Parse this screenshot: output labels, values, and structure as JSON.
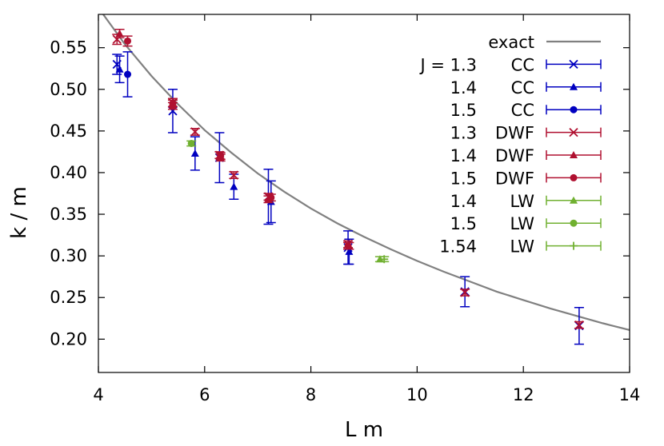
{
  "chart_data": {
    "type": "scatter",
    "title": "",
    "xlabel": "L m",
    "ylabel": "k / m",
    "xlim": [
      4,
      14
    ],
    "ylim": [
      0.16,
      0.59
    ],
    "x_ticks": [
      4,
      6,
      8,
      10,
      12,
      14
    ],
    "y_ticks": [
      0.2,
      0.25,
      0.3,
      0.35,
      0.4,
      0.45,
      0.5,
      0.55
    ],
    "x_tick_labels": [
      "4",
      "6",
      "8",
      "10",
      "12",
      "14"
    ],
    "y_tick_labels": [
      "0.20",
      "0.25",
      "0.30",
      "0.35",
      "0.40",
      "0.45",
      "0.50",
      "0.55"
    ],
    "grid": false,
    "legend_position": "top-right",
    "curve": {
      "name": "exact",
      "color": "#808080",
      "x": [
        4.0,
        4.5,
        5.0,
        5.5,
        6.0,
        6.5,
        7.0,
        7.5,
        8.0,
        8.5,
        9.0,
        9.5,
        10.0,
        10.5,
        11.0,
        11.5,
        12.0,
        12.5,
        13.0,
        13.5,
        14.0
      ],
      "y": [
        0.598,
        0.554,
        0.516,
        0.482,
        0.451,
        0.424,
        0.399,
        0.377,
        0.357,
        0.339,
        0.323,
        0.308,
        0.294,
        0.281,
        0.269,
        0.257,
        0.247,
        0.237,
        0.228,
        0.219,
        0.211
      ]
    },
    "series": [
      {
        "name": "CC",
        "legend_prefix": "J = 1.3",
        "legend_suffix": "CC",
        "color": "#0000c0",
        "marker": "x",
        "points": [
          {
            "x": 4.35,
            "y": 0.53,
            "err": 0.012
          },
          {
            "x": 5.4,
            "y": 0.474,
            "err": 0.026
          },
          {
            "x": 6.28,
            "y": 0.418,
            "err": 0.03
          },
          {
            "x": 7.2,
            "y": 0.371,
            "err": 0.033
          },
          {
            "x": 8.7,
            "y": 0.31,
            "err": 0.02
          },
          {
            "x": 10.9,
            "y": 0.257,
            "err": 0.018
          },
          {
            "x": 13.05,
            "y": 0.216,
            "err": 0.022
          }
        ]
      },
      {
        "name": "CC",
        "legend_prefix": "1.4",
        "legend_suffix": "CC",
        "color": "#0000c0",
        "marker": "triangle",
        "points": [
          {
            "x": 4.4,
            "y": 0.524,
            "err": 0.016
          },
          {
            "x": 5.82,
            "y": 0.423,
            "err": 0.02
          },
          {
            "x": 6.55,
            "y": 0.383,
            "err": 0.015
          },
          {
            "x": 7.25,
            "y": 0.365,
            "err": 0.025
          },
          {
            "x": 8.72,
            "y": 0.305,
            "err": 0.015
          }
        ]
      },
      {
        "name": "CC",
        "legend_prefix": "1.5",
        "legend_suffix": "CC",
        "color": "#0000c0",
        "marker": "circle",
        "points": [
          {
            "x": 4.55,
            "y": 0.518,
            "err": 0.027
          }
        ]
      },
      {
        "name": "DWF",
        "legend_prefix": "1.3",
        "legend_suffix": "DWF",
        "color": "#b01030",
        "marker": "x",
        "points": [
          {
            "x": 4.35,
            "y": 0.56,
            "err": 0.006
          },
          {
            "x": 5.4,
            "y": 0.484,
            "err": 0.005
          },
          {
            "x": 5.82,
            "y": 0.449,
            "err": 0.004
          },
          {
            "x": 6.28,
            "y": 0.421,
            "err": 0.004
          },
          {
            "x": 6.55,
            "y": 0.397,
            "err": 0.004
          },
          {
            "x": 7.2,
            "y": 0.371,
            "err": 0.004
          },
          {
            "x": 8.7,
            "y": 0.314,
            "err": 0.004
          },
          {
            "x": 10.9,
            "y": 0.256,
            "err": 0.004
          },
          {
            "x": 13.05,
            "y": 0.217,
            "err": 0.004
          }
        ]
      },
      {
        "name": "DWF",
        "legend_prefix": "1.4",
        "legend_suffix": "DWF",
        "color": "#b01030",
        "marker": "triangle",
        "points": [
          {
            "x": 4.4,
            "y": 0.567,
            "err": 0.005
          },
          {
            "x": 5.4,
            "y": 0.48,
            "err": 0.004
          },
          {
            "x": 6.3,
            "y": 0.418,
            "err": 0.004
          },
          {
            "x": 7.2,
            "y": 0.368,
            "err": 0.004
          },
          {
            "x": 8.72,
            "y": 0.312,
            "err": 0.004
          }
        ]
      },
      {
        "name": "DWF",
        "legend_prefix": "1.5",
        "legend_suffix": "DWF",
        "color": "#b01030",
        "marker": "circle",
        "points": [
          {
            "x": 4.55,
            "y": 0.558,
            "err": 0.006
          },
          {
            "x": 5.4,
            "y": 0.483,
            "err": 0.004
          },
          {
            "x": 6.3,
            "y": 0.42,
            "err": 0.004
          },
          {
            "x": 7.25,
            "y": 0.37,
            "err": 0.004
          },
          {
            "x": 8.7,
            "y": 0.312,
            "err": 0.004
          }
        ]
      },
      {
        "name": "LW",
        "legend_prefix": "1.4",
        "legend_suffix": "LW",
        "color": "#70b030",
        "marker": "triangle",
        "points": [
          {
            "x": 9.3,
            "y": 0.296,
            "err": 0.003
          }
        ]
      },
      {
        "name": "LW",
        "legend_prefix": "1.5",
        "legend_suffix": "LW",
        "color": "#70b030",
        "marker": "circle",
        "points": [
          {
            "x": 5.75,
            "y": 0.435,
            "err": 0.003
          }
        ]
      },
      {
        "name": "LW",
        "legend_prefix": "1.54",
        "legend_suffix": "LW",
        "color": "#70b030",
        "marker": "plus",
        "points": [
          {
            "x": 9.38,
            "y": 0.296,
            "err": 0.003
          }
        ]
      }
    ]
  }
}
